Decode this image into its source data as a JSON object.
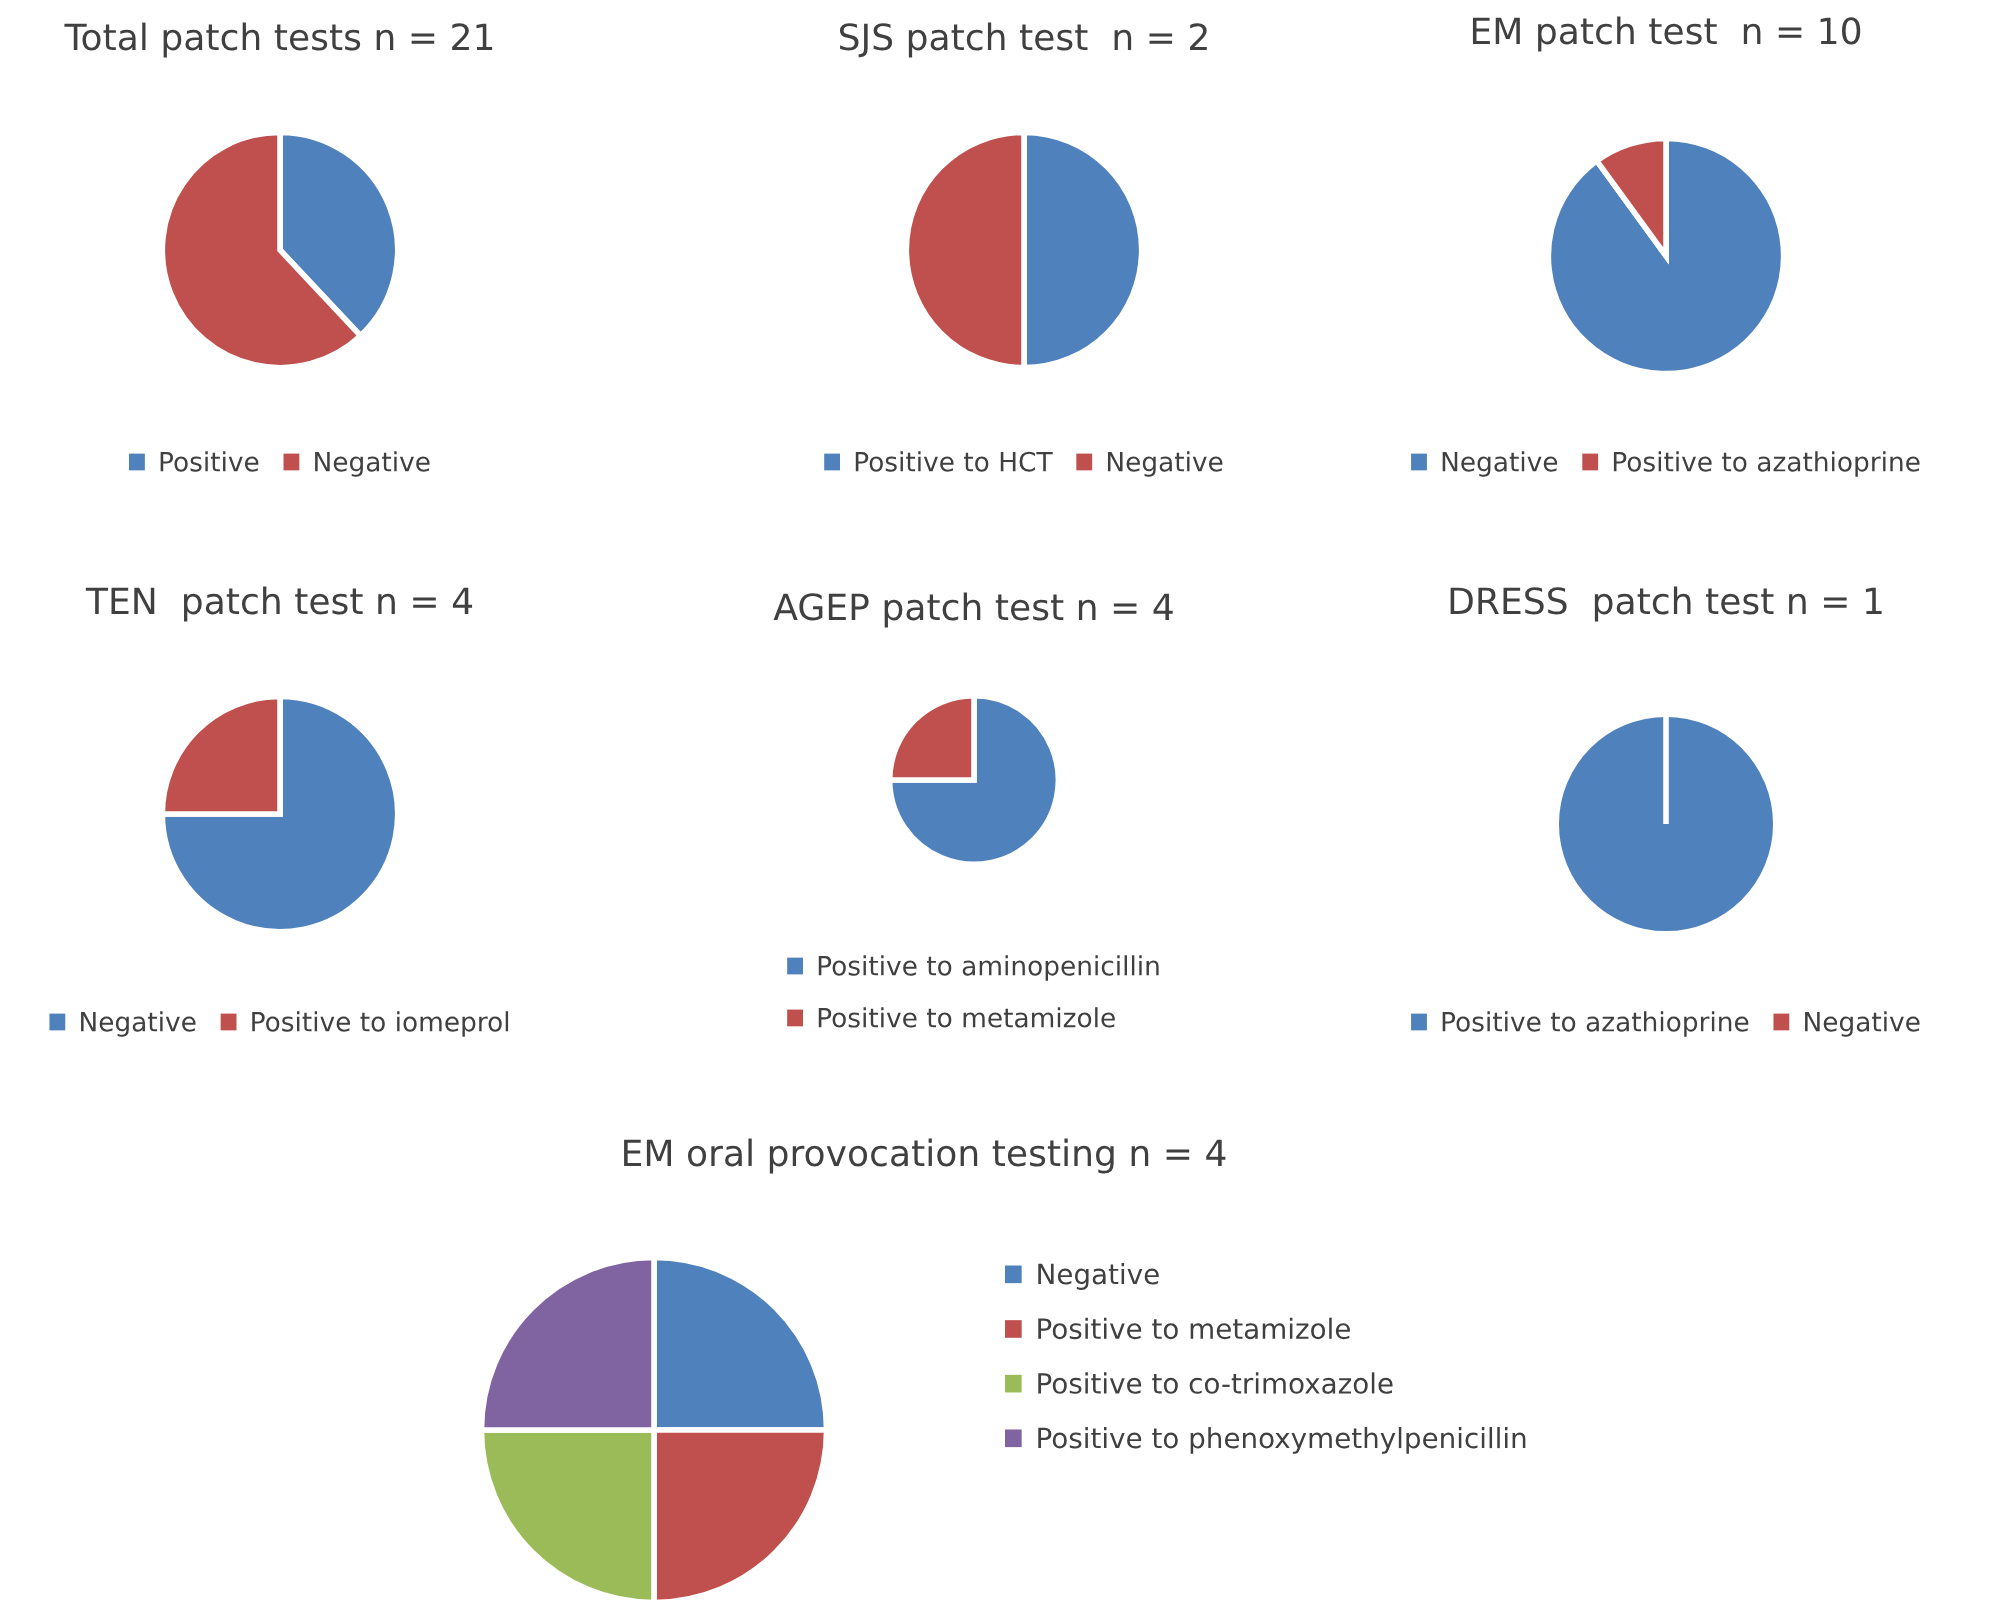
{
  "chart_data": [
    {
      "type": "pie",
      "title": "Total patch tests n = 21",
      "categories": [
        "Positive",
        "Negative"
      ],
      "values": [
        38,
        62
      ],
      "colors": [
        "#4f81bd",
        "#c0504d"
      ],
      "legend": "bottom"
    },
    {
      "type": "pie",
      "title": "SJS patch test  n = 2",
      "categories": [
        "Positive to HCT",
        "Negative"
      ],
      "values": [
        50,
        50
      ],
      "colors": [
        "#4f81bd",
        "#c0504d"
      ],
      "legend": "bottom"
    },
    {
      "type": "pie",
      "title": "EM patch test  n = 10",
      "categories": [
        "Negative",
        "Positive to azathioprine"
      ],
      "values": [
        90,
        10
      ],
      "colors": [
        "#4f81bd",
        "#c0504d"
      ],
      "legend": "bottom"
    },
    {
      "type": "pie",
      "title": "TEN  patch test n = 4",
      "categories": [
        "Negative",
        "Positive to iomeprol"
      ],
      "values": [
        75,
        25
      ],
      "colors": [
        "#4f81bd",
        "#c0504d"
      ],
      "legend": "bottom"
    },
    {
      "type": "pie",
      "title": "AGEP patch test n = 4",
      "categories": [
        "Positive to aminopenicillin",
        "Positive to metamizole"
      ],
      "values": [
        75,
        25
      ],
      "colors": [
        "#4f81bd",
        "#c0504d"
      ],
      "legend": "bottom"
    },
    {
      "type": "pie",
      "title": "DRESS  patch test n = 1",
      "categories": [
        "Positive to azathioprine",
        "Negative"
      ],
      "values": [
        100,
        0
      ],
      "colors": [
        "#4f81bd",
        "#c0504d"
      ],
      "legend": "bottom"
    },
    {
      "type": "pie",
      "title": "EM oral provocation testing n = 4",
      "categories": [
        "Negative",
        "Positive to metamizole",
        "Positive to co-trimoxazole",
        "Positive to phenoxymethylpenicillin"
      ],
      "values": [
        25,
        25,
        25,
        25
      ],
      "colors": [
        "#4f81bd",
        "#c0504d",
        "#9bbb59",
        "#8064a2"
      ],
      "legend": "right"
    }
  ]
}
